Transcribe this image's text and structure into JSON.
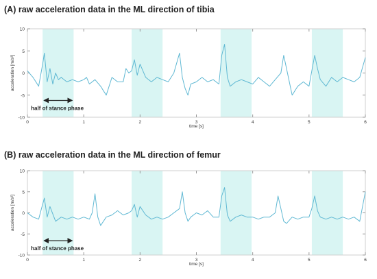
{
  "chart_data": [
    {
      "type": "line",
      "title": "(A) raw acceleration data in the ML direction of tibia",
      "xlabel": "time [s]",
      "ylabel": "acceleration [m/s²]",
      "xlim": [
        0,
        6
      ],
      "ylim": [
        -10,
        10
      ],
      "x_ticks": [
        "0",
        "1",
        "2",
        "3",
        "4",
        "5",
        "6"
      ],
      "y_ticks": [
        "10",
        "5",
        "0",
        "-5",
        "-10"
      ],
      "grid": false,
      "line_color": "#5fb8d3",
      "shade_color": "#d9f5f3",
      "shaded_intervals": [
        [
          0.27,
          0.82
        ],
        [
          1.85,
          2.4
        ],
        [
          3.43,
          3.98
        ],
        [
          5.05,
          5.6
        ]
      ],
      "annotation": {
        "text": "half of stance phase",
        "x_from": 0.27,
        "x_to": 0.82,
        "y": -6.2
      },
      "series": [
        {
          "x": [
            0,
            0.1,
            0.2,
            0.27,
            0.3,
            0.35,
            0.4,
            0.45,
            0.5,
            0.55,
            0.6,
            0.7,
            0.8,
            0.9,
            1.0,
            1.05,
            1.1,
            1.2,
            1.3,
            1.4,
            1.5,
            1.6,
            1.7,
            1.75,
            1.8,
            1.85,
            1.9,
            1.95,
            2.0,
            2.1,
            2.2,
            2.3,
            2.4,
            2.5,
            2.6,
            2.7,
            2.75,
            2.8,
            2.85,
            2.9,
            3.0,
            3.1,
            3.2,
            3.3,
            3.4,
            3.45,
            3.5,
            3.55,
            3.6,
            3.7,
            3.8,
            3.9,
            4.0,
            4.1,
            4.2,
            4.3,
            4.4,
            4.5,
            4.55,
            4.6,
            4.7,
            4.8,
            4.9,
            5.0,
            5.05,
            5.1,
            5.15,
            5.2,
            5.3,
            5.4,
            5.5,
            5.6,
            5.7,
            5.8,
            5.9,
            6.0
          ],
          "y": [
            0.5,
            -1,
            -3,
            2,
            4.5,
            -2,
            1,
            -2.5,
            0,
            -1.5,
            -1,
            -2,
            -1.5,
            -2,
            -1.5,
            -1,
            -2.5,
            -1.5,
            -3,
            -5,
            -1,
            -2,
            -2,
            1,
            0,
            0.5,
            3,
            -0.5,
            2,
            -1,
            -2,
            -1,
            -1.5,
            -2,
            0,
            4.5,
            -1,
            -3.5,
            -5,
            -2.5,
            -2,
            -1,
            -2,
            -1.5,
            -2.5,
            4,
            6.5,
            -1,
            -3,
            -2,
            -1.5,
            -2,
            -2.5,
            -1,
            -2,
            -3,
            -1.5,
            0,
            4,
            1,
            -5,
            -3,
            -2,
            -3,
            0.5,
            4,
            1,
            -1.5,
            -3,
            -1,
            -2,
            -1,
            -1.5,
            -2,
            -1,
            3.5
          ]
        }
      ]
    },
    {
      "type": "line",
      "title": "(B) raw acceleration data in the ML direction of femur",
      "xlabel": "time [s]",
      "ylabel": "acceleration [m/s²]",
      "xlim": [
        0,
        6
      ],
      "ylim": [
        -10,
        10
      ],
      "x_ticks": [
        "0",
        "1",
        "2",
        "3",
        "4",
        "5",
        "6"
      ],
      "y_ticks": [
        "10",
        "5",
        "0",
        "-5",
        "-10"
      ],
      "grid": false,
      "line_color": "#5fb8d3",
      "shade_color": "#d9f5f3",
      "shaded_intervals": [
        [
          0.27,
          0.82
        ],
        [
          1.85,
          2.4
        ],
        [
          3.43,
          3.98
        ],
        [
          5.05,
          5.6
        ]
      ],
      "annotation": {
        "text": "half of stance phase",
        "x_from": 0.27,
        "x_to": 0.82,
        "y": -6.6
      },
      "series": [
        {
          "x": [
            0,
            0.1,
            0.2,
            0.25,
            0.3,
            0.35,
            0.4,
            0.5,
            0.6,
            0.7,
            0.8,
            0.9,
            1.0,
            1.1,
            1.15,
            1.2,
            1.25,
            1.3,
            1.4,
            1.5,
            1.6,
            1.7,
            1.8,
            1.85,
            1.9,
            1.95,
            2.0,
            2.1,
            2.2,
            2.3,
            2.4,
            2.5,
            2.6,
            2.7,
            2.75,
            2.8,
            2.85,
            2.9,
            3.0,
            3.1,
            3.2,
            3.3,
            3.4,
            3.45,
            3.5,
            3.55,
            3.6,
            3.7,
            3.8,
            3.9,
            4.0,
            4.1,
            4.2,
            4.3,
            4.4,
            4.45,
            4.5,
            4.55,
            4.6,
            4.7,
            4.8,
            4.9,
            5.0,
            5.05,
            5.1,
            5.15,
            5.2,
            5.3,
            5.4,
            5.5,
            5.6,
            5.7,
            5.8,
            5.9,
            6.0
          ],
          "y": [
            0,
            -1,
            -1.5,
            1,
            3.5,
            -1,
            1.5,
            -2,
            -1,
            -1.5,
            -1,
            -1.5,
            -1,
            -1.5,
            0,
            4.5,
            -1,
            -3,
            -1,
            -0.5,
            0.5,
            -0.5,
            0,
            0.5,
            2,
            -1,
            1.5,
            -0.5,
            -1.5,
            -1,
            -1.5,
            -1,
            0,
            1,
            5,
            0,
            -2,
            -1,
            0,
            -0.5,
            0.5,
            -1,
            -1,
            4,
            6,
            -0.5,
            -2,
            -1,
            -0.5,
            -1,
            -1,
            -1.5,
            -1,
            -1,
            0,
            4,
            1,
            -2,
            -2.5,
            -1,
            -1.5,
            -1,
            -1,
            1,
            4,
            0.5,
            -1,
            -1.5,
            -1,
            -1.5,
            -1,
            -1.5,
            -1,
            -2,
            5
          ]
        }
      ]
    }
  ]
}
